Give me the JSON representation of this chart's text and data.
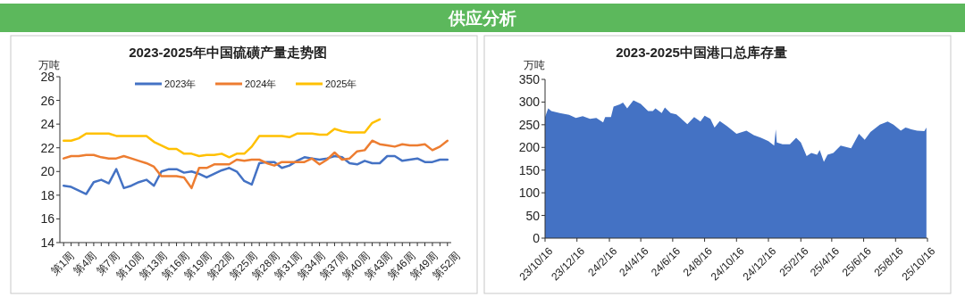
{
  "chart_data": [
    {
      "type": "line",
      "title": "2023-2025年中国硫磺产量走势图",
      "ylabel": "万吨",
      "annotations": [
        "供应分析"
      ],
      "legend": "top",
      "categories": [
        "第1周",
        null,
        null,
        "第4周",
        null,
        null,
        "第7周",
        null,
        null,
        "第10周",
        null,
        null,
        "第13周",
        null,
        null,
        "第16周",
        null,
        null,
        "第19周",
        null,
        null,
        "第22周",
        null,
        null,
        "第25周",
        null,
        null,
        "第28周",
        null,
        null,
        "第31周",
        null,
        null,
        "第34周",
        null,
        null,
        "第37周",
        null,
        null,
        "第40周",
        null,
        null,
        "第43周",
        null,
        null,
        "第46周",
        null,
        null,
        "第49周",
        null,
        null,
        "第52周"
      ],
      "ylim": [
        14,
        28
      ],
      "yticks": [
        14,
        16,
        18,
        20,
        22,
        24,
        26,
        28
      ],
      "series": [
        {
          "name": "2023年",
          "color": "#4472c4",
          "values": [
            18.8,
            18.7,
            18.4,
            18.1,
            19.1,
            19.3,
            19.0,
            20.2,
            18.6,
            18.8,
            19.1,
            19.3,
            18.8,
            20.0,
            20.2,
            20.2,
            19.9,
            20.0,
            19.8,
            19.5,
            19.8,
            20.1,
            20.3,
            20.0,
            19.2,
            18.9,
            20.7,
            20.8,
            20.8,
            20.3,
            20.5,
            20.9,
            21.2,
            21.1,
            21.0,
            21.1,
            21.3,
            21.2,
            20.7,
            20.6,
            20.9,
            20.7,
            20.7,
            21.3,
            21.3,
            20.9,
            21.0,
            21.1,
            20.8,
            20.8,
            21.0,
            21.0
          ]
        },
        {
          "name": "2024年",
          "color": "#ed7d31",
          "values": [
            21.1,
            21.3,
            21.3,
            21.4,
            21.4,
            21.2,
            21.1,
            21.1,
            21.3,
            21.1,
            20.9,
            20.7,
            20.4,
            19.6,
            19.6,
            19.6,
            19.5,
            18.6,
            20.3,
            20.3,
            20.6,
            20.6,
            20.6,
            21.0,
            20.9,
            21.0,
            21.0,
            20.7,
            20.5,
            20.8,
            20.8,
            20.8,
            20.8,
            21.1,
            20.6,
            21.0,
            21.6,
            21.0,
            21.1,
            21.7,
            21.8,
            22.6,
            22.3,
            22.2,
            22.1,
            22.3,
            22.2,
            22.2,
            22.3,
            21.8,
            22.1,
            22.6
          ]
        },
        {
          "name": "2025年",
          "color": "#ffc000",
          "values": [
            22.6,
            22.6,
            22.8,
            23.2,
            23.2,
            23.2,
            23.2,
            23.0,
            23.0,
            23.0,
            23.0,
            23.0,
            22.5,
            22.2,
            21.9,
            21.9,
            21.5,
            21.5,
            21.3,
            21.4,
            21.4,
            21.5,
            21.2,
            21.5,
            21.5,
            22.1,
            23.0,
            23.0,
            23.0,
            23.0,
            22.9,
            23.2,
            23.2,
            23.2,
            23.1,
            23.1,
            23.6,
            23.4,
            23.3,
            23.3,
            23.3,
            24.1,
            24.4,
            null,
            null,
            null,
            null,
            null,
            null,
            null,
            null,
            null
          ]
        }
      ]
    },
    {
      "type": "area",
      "title": "2023-2025中国港口总库存量",
      "ylabel": "万吨",
      "xlim": [
        "2023-10-16",
        "2025-10-16"
      ],
      "xticks": [
        {
          "value": "2023-10-16",
          "label": "23/10/16"
        },
        {
          "value": "2023-12-16",
          "label": "23/12/16"
        },
        {
          "value": "2024-02-16",
          "label": "24/2/16"
        },
        {
          "value": "2024-04-16",
          "label": "24/4/16"
        },
        {
          "value": "2024-06-16",
          "label": "24/6/16"
        },
        {
          "value": "2024-08-16",
          "label": "24/8/16"
        },
        {
          "value": "2024-10-16",
          "label": "24/10/16"
        },
        {
          "value": "2024-12-16",
          "label": "24/12/16"
        },
        {
          "value": "2025-02-16",
          "label": "25/2/16"
        },
        {
          "value": "2025-04-16",
          "label": "25/4/16"
        },
        {
          "value": "2025-06-16",
          "label": "25/6/16"
        },
        {
          "value": "2025-08-16",
          "label": "25/8/16"
        },
        {
          "value": "2025-10-16",
          "label": "25/10/16"
        }
      ],
      "ylim": [
        0,
        350
      ],
      "yticks": [
        0,
        50,
        100,
        150,
        200,
        250,
        300,
        350
      ],
      "series": [
        {
          "color": "#4472c4",
          "x": [
            "2023-10-16",
            "2023-10-22",
            "2023-10-28",
            "2023-11-13",
            "2023-12-01",
            "2023-12-14",
            "2023-12-27",
            "2024-01-10",
            "2024-01-22",
            "2024-02-04",
            "2024-02-08",
            "2024-02-19",
            "2024-02-24",
            "2024-03-07",
            "2024-03-13",
            "2024-03-21",
            "2024-04-02",
            "2024-04-16",
            "2024-04-30",
            "2024-05-09",
            "2024-05-14",
            "2024-05-26",
            "2024-06-01",
            "2024-06-12",
            "2024-06-23",
            "2024-06-29",
            "2024-07-14",
            "2024-07-27",
            "2024-08-08",
            "2024-08-16",
            "2024-08-27",
            "2024-09-04",
            "2024-09-14",
            "2024-09-28",
            "2024-10-16",
            "2024-11-04",
            "2024-11-18",
            "2024-12-02",
            "2024-12-16",
            "2024-12-27",
            "2024-12-30",
            "2025-01-01",
            "2025-01-12",
            "2025-01-26",
            "2025-02-07",
            "2025-02-16",
            "2025-02-27",
            "2025-03-08",
            "2025-03-19",
            "2025-03-24",
            "2025-04-01",
            "2025-04-08",
            "2025-04-19",
            "2025-05-03",
            "2025-05-23",
            "2025-06-07",
            "2025-06-18",
            "2025-06-29",
            "2025-07-17",
            "2025-08-01",
            "2025-08-12",
            "2025-08-26",
            "2025-09-04",
            "2025-09-15",
            "2025-09-26",
            "2025-10-10",
            "2025-10-14"
          ],
          "values": [
            267,
            286,
            280,
            276,
            272,
            265,
            269,
            263,
            265,
            255,
            267,
            267,
            290,
            295,
            299,
            286,
            304,
            296,
            280,
            280,
            286,
            276,
            288,
            276,
            273,
            267,
            251,
            267,
            257,
            270,
            263,
            244,
            258,
            247,
            230,
            237,
            227,
            221,
            214,
            204,
            240,
            211,
            207,
            207,
            221,
            211,
            181,
            188,
            184,
            194,
            168,
            184,
            188,
            204,
            198,
            230,
            217,
            234,
            250,
            257,
            250,
            237,
            244,
            240,
            237,
            236,
            244
          ]
        }
      ]
    }
  ]
}
